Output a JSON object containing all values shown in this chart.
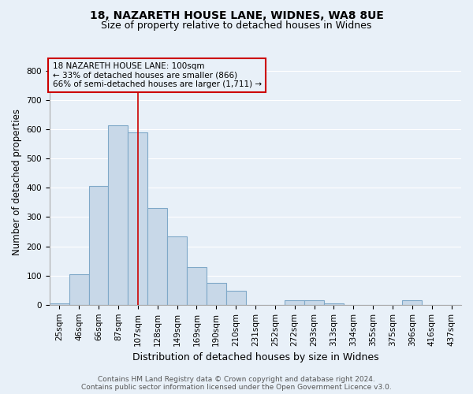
{
  "title1": "18, NAZARETH HOUSE LANE, WIDNES, WA8 8UE",
  "title2": "Size of property relative to detached houses in Widnes",
  "xlabel": "Distribution of detached houses by size in Widnes",
  "ylabel": "Number of detached properties",
  "footnote1": "Contains HM Land Registry data © Crown copyright and database right 2024.",
  "footnote2": "Contains public sector information licensed under the Open Government Licence v3.0.",
  "annotation_line1": "18 NAZARETH HOUSE LANE: 100sqm",
  "annotation_line2": "← 33% of detached houses are smaller (866)",
  "annotation_line3": "66% of semi-detached houses are larger (1,711) →",
  "bar_labels": [
    "25sqm",
    "46sqm",
    "66sqm",
    "87sqm",
    "107sqm",
    "128sqm",
    "149sqm",
    "169sqm",
    "190sqm",
    "210sqm",
    "231sqm",
    "252sqm",
    "272sqm",
    "293sqm",
    "313sqm",
    "334sqm",
    "355sqm",
    "375sqm",
    "396sqm",
    "416sqm",
    "437sqm"
  ],
  "bar_values": [
    5,
    105,
    405,
    615,
    590,
    330,
    235,
    130,
    75,
    48,
    0,
    0,
    15,
    15,
    5,
    0,
    0,
    0,
    15,
    0,
    0
  ],
  "bar_color": "#c8d8e8",
  "bar_edge_color": "#7fa8c8",
  "bar_edge_width": 0.8,
  "vline_x_index": 4,
  "vline_color": "#cc0000",
  "annotation_box_color": "#cc0000",
  "ylim": [
    0,
    840
  ],
  "yticks": [
    0,
    100,
    200,
    300,
    400,
    500,
    600,
    700,
    800
  ],
  "background_color": "#e8f0f8",
  "grid_color": "#ffffff",
  "title1_fontsize": 10,
  "title2_fontsize": 9,
  "xlabel_fontsize": 9,
  "ylabel_fontsize": 8.5,
  "tick_fontsize": 7.5,
  "annotation_fontsize": 7.5,
  "footnote_fontsize": 6.5
}
